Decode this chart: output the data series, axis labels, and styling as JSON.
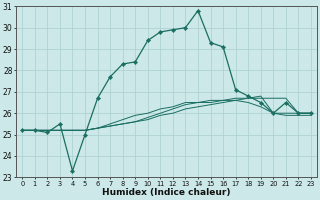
{
  "xlabel": "Humidex (Indice chaleur)",
  "x": [
    0,
    1,
    2,
    3,
    4,
    5,
    6,
    7,
    8,
    9,
    10,
    11,
    12,
    13,
    14,
    15,
    16,
    17,
    18,
    19,
    20,
    21,
    22,
    23
  ],
  "line_main": [
    25.2,
    25.2,
    25.1,
    25.5,
    23.3,
    25.0,
    26.7,
    27.7,
    28.3,
    28.4,
    29.4,
    29.8,
    29.9,
    30.0,
    30.8,
    29.3,
    29.1,
    27.1,
    26.8,
    26.5,
    26.0,
    26.5,
    26.0,
    26.0
  ],
  "line_flat1": [
    25.2,
    25.2,
    25.2,
    25.2,
    25.2,
    25.2,
    25.3,
    25.4,
    25.5,
    25.6,
    25.7,
    25.9,
    26.0,
    26.2,
    26.3,
    26.4,
    26.5,
    26.6,
    26.7,
    26.7,
    26.7,
    26.7,
    26.0,
    26.0
  ],
  "line_flat2": [
    25.2,
    25.2,
    25.2,
    25.2,
    25.2,
    25.2,
    25.3,
    25.4,
    25.5,
    25.6,
    25.8,
    26.0,
    26.2,
    26.4,
    26.5,
    26.6,
    26.6,
    26.7,
    26.7,
    26.8,
    26.0,
    26.0,
    26.0,
    26.0
  ],
  "line_flat3": [
    25.2,
    25.2,
    25.2,
    25.2,
    25.2,
    25.2,
    25.3,
    25.5,
    25.7,
    25.9,
    26.0,
    26.2,
    26.3,
    26.5,
    26.5,
    26.5,
    26.6,
    26.6,
    26.5,
    26.3,
    26.0,
    25.9,
    25.9,
    25.9
  ],
  "bg_color": "#cce8e8",
  "line_color": "#1a6e62",
  "grid_color": "#aacece",
  "ylim": [
    23,
    31
  ],
  "yticks": [
    23,
    24,
    25,
    26,
    27,
    28,
    29,
    30,
    31
  ],
  "xlim_min": -0.5,
  "xlim_max": 23.5,
  "xticks": [
    0,
    1,
    2,
    3,
    4,
    5,
    6,
    7,
    8,
    9,
    10,
    11,
    12,
    13,
    14,
    15,
    16,
    17,
    18,
    19,
    20,
    21,
    22,
    23
  ]
}
